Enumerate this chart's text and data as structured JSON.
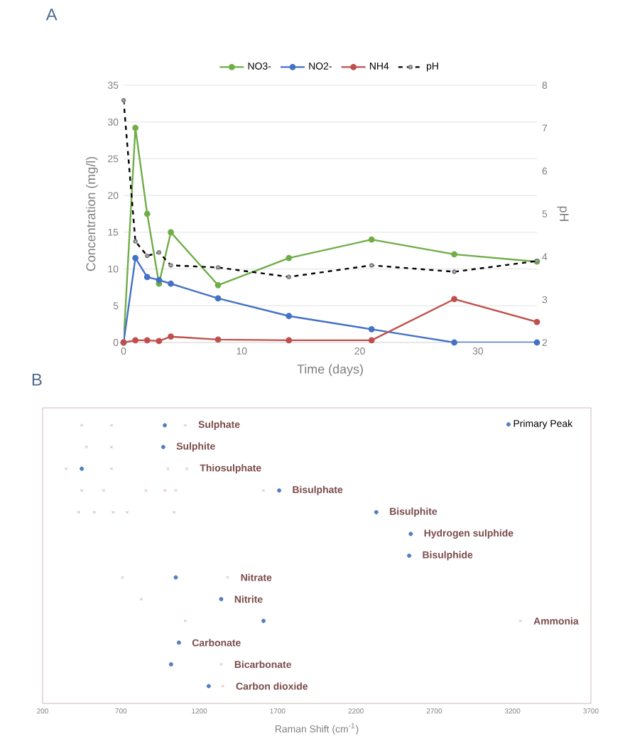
{
  "chart_data": [
    {
      "type": "line",
      "title": "A",
      "xlabel": "Time (days)",
      "ylabel": "Concentration (mg/l)",
      "y2label": "pH",
      "xlim": [
        0,
        35
      ],
      "xticks": [
        0,
        10,
        20,
        30
      ],
      "ylim": [
        0,
        35
      ],
      "yticks": [
        0,
        5,
        10,
        15,
        20,
        25,
        30,
        35
      ],
      "y2lim": [
        2,
        8
      ],
      "y2ticks": [
        2,
        3,
        4,
        5,
        6,
        7,
        8
      ],
      "grid": "y",
      "legend": "top",
      "marker": "circle",
      "line_style": "solid",
      "series": [
        {
          "name": "NO3-",
          "color": "#70ad47",
          "x": [
            0,
            1,
            2,
            3,
            4,
            8,
            14,
            21,
            28,
            35
          ],
          "values": [
            0,
            29.2,
            17.5,
            8,
            15,
            7.8,
            11.5,
            14,
            12,
            11
          ]
        },
        {
          "name": "NO2-",
          "color": "#4472c4",
          "x": [
            0,
            1,
            2,
            3,
            4,
            8,
            14,
            21,
            28,
            35
          ],
          "values": [
            0,
            11.5,
            8.9,
            8.5,
            8,
            6,
            3.6,
            1.8,
            0,
            0
          ]
        },
        {
          "name": "NH4",
          "color": "#c0504d",
          "x": [
            0,
            1,
            2,
            3,
            4,
            8,
            14,
            21,
            28,
            35
          ],
          "values": [
            0,
            0.3,
            0.3,
            0.2,
            0.8,
            0.4,
            0.3,
            0.3,
            5.9,
            2.8
          ]
        },
        {
          "name": "pH",
          "color": "#000000",
          "axis": "y2",
          "line_style": "dashed",
          "x": [
            0,
            1,
            2,
            3,
            4,
            8,
            14,
            21,
            28,
            35
          ],
          "values": [
            7.65,
            4.36,
            4.02,
            4.1,
            3.8,
            3.75,
            3.53,
            3.8,
            3.65,
            3.9
          ]
        }
      ]
    },
    {
      "type": "scatter",
      "title": "B",
      "xlabel": "Raman Shift (cm$^{-1}$)",
      "orientation": "horizontal",
      "tick_labels": "x",
      "legend": "top right",
      "marker": "circle",
      "xlim": [
        200,
        3700
      ],
      "xticks": [
        200,
        700,
        1200,
        1700,
        2200,
        2700,
        3200,
        3700
      ],
      "categories": [
        "Sulphate",
        "Sulphite",
        "Thiosulphate",
        "Bisulphate",
        "Bisulphite",
        "Hydrogen sulphide",
        "Bisulphide",
        "Nitrate",
        "Nitrite",
        "Ammonia",
        "Carbonate",
        "Bicarbonate",
        "Carbon dioxide"
      ],
      "series": [
        {
          "name": "Primary Peak",
          "color": "#4f7fc0",
          "values": [
            980,
            970,
            450,
            1710,
            2330,
            2550,
            2540,
            1050,
            1340,
            1610,
            1070,
            1020,
            1260
          ]
        },
        {
          "color": "#d09a9a",
          "marker": "cross",
          "values": [
            450,
            480,
            350,
            450,
            430,
            null,
            null,
            710,
            830,
            1110,
            null,
            1340,
            1350
          ]
        },
        {
          "color": "#d09a9a",
          "marker": "cross",
          "values": [
            640,
            640,
            640,
            590,
            530,
            null,
            null,
            1380,
            null,
            3250,
            null,
            null,
            null
          ]
        },
        {
          "color": "#d09a9a",
          "marker": "cross",
          "values": [
            1110,
            null,
            1000,
            860,
            650,
            null,
            null,
            null,
            null,
            null,
            null,
            null,
            null
          ]
        },
        {
          "color": "#d09a9a",
          "marker": "cross",
          "values": [
            null,
            null,
            1120,
            980,
            740,
            null,
            null,
            null,
            null,
            null,
            null,
            null,
            null
          ]
        },
        {
          "color": "#d09a9a",
          "marker": "cross",
          "values": [
            null,
            null,
            null,
            1050,
            1040,
            null,
            null,
            null,
            null,
            null,
            null,
            null,
            null
          ]
        },
        {
          "color": "#d09a9a",
          "marker": "cross",
          "values": [
            null,
            null,
            null,
            1610,
            null,
            null,
            null,
            null,
            null,
            null,
            null,
            null,
            null
          ]
        }
      ]
    }
  ]
}
